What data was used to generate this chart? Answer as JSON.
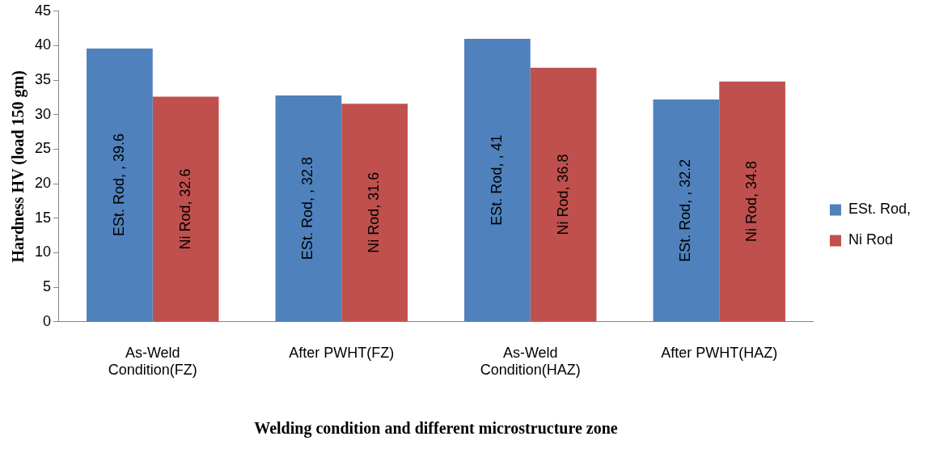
{
  "chart_data": {
    "type": "bar",
    "xlabel": "Welding condition and different microstructure zone",
    "ylabel": "Hardness HV (load 150 gm)",
    "categories": [
      "As-Weld Condition(FZ)",
      "After PWHT(FZ)",
      "As-Weld Condition(HAZ)",
      "After PWHT(HAZ)"
    ],
    "series": [
      {
        "name": "ESt. Rod,",
        "color": "#4f81bd",
        "values": [
          39.6,
          32.8,
          41,
          32.2
        ],
        "value_labels": [
          "ESt. Rod, , 39.6",
          "ESt. Rod, , 32.8",
          "ESt. Rod, , 41",
          "ESt. Rod, , 32.2"
        ]
      },
      {
        "name": "Ni Rod",
        "color": "#c0504d",
        "values": [
          32.6,
          31.6,
          36.8,
          34.8
        ],
        "value_labels": [
          "Ni Rod, 32.6",
          "Ni Rod, 31.6",
          "Ni Rod, 36.8",
          "Ni Rod, 34.8"
        ]
      }
    ],
    "ylim": [
      0,
      45
    ],
    "yticks": [
      0,
      5,
      10,
      15,
      20,
      25,
      30,
      35,
      40,
      45
    ],
    "grid": false,
    "legend": "right"
  }
}
